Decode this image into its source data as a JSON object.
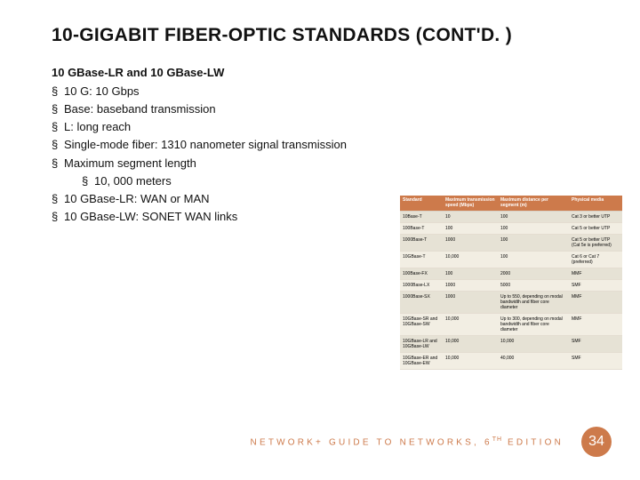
{
  "title": "10-GIGABIT FIBER-OPTIC STANDARDS (CONT'D. )",
  "subtitle": "10 GBase-LR and 10 GBase-LW",
  "bullets": [
    "10 G: 10 Gbps",
    "Base: baseband transmission",
    "L: long reach",
    "Single-mode fiber: 1310 nanometer signal transmission",
    "Maximum segment length",
    "10 GBase-LR: WAN or MAN",
    "10 GBase-LW: SONET WAN links"
  ],
  "sub_bullet": "10, 000 meters",
  "footer": {
    "text_prefix": "NETWORK+ GUIDE TO NETWORKS, 6",
    "text_sup": "TH",
    "text_suffix": " EDITION",
    "page": "34"
  },
  "table": {
    "headers": [
      "Standard",
      "Maximum transmission speed (Mbps)",
      "Maximum distance per segment (m)",
      "Physical media"
    ],
    "header_bg": "#cd7a4b",
    "header_color": "#ffffff",
    "row_colors": [
      "#e6e2d5",
      "#f2eee3"
    ],
    "rows": [
      [
        "10Base-T",
        "10",
        "100",
        "Cat 3 or better UTP"
      ],
      [
        "100Base-T",
        "100",
        "100",
        "Cat 5 or better UTP"
      ],
      [
        "1000Base-T",
        "1000",
        "100",
        "Cat 5 or better UTP (Cat 5e is preferred)"
      ],
      [
        "10GBase-T",
        "10,000",
        "100",
        "Cat 6 or Cat 7 (preferred)"
      ],
      [
        "100Base-FX",
        "100",
        "2000",
        "MMF"
      ],
      [
        "1000Base-LX",
        "1000",
        "5000",
        "SMF"
      ],
      [
        "1000Base-SX",
        "1000",
        "Up to 550, depending on modal bandwidth and fiber core diameter",
        "MMF"
      ],
      [
        "10GBase-SR and 10GBase-SW",
        "10,000",
        "Up to 300, depending on modal bandwidth and fiber core diameter",
        "MMF"
      ],
      [
        "10GBase-LR and 10GBase-LW",
        "10,000",
        "10,000",
        "SMF"
      ],
      [
        "10GBase-ER and 10GBase-EW",
        "10,000",
        "40,000",
        "SMF"
      ]
    ]
  }
}
